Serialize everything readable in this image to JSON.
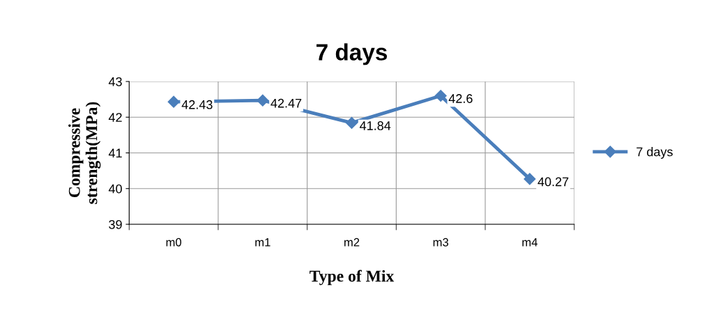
{
  "chart_data": {
    "type": "line",
    "title": "7 days",
    "xlabel": "Type of Mix",
    "ylabel": "Compressive\nstrength(MPa)",
    "categories": [
      "m0",
      "m1",
      "m2",
      "m3",
      "m4"
    ],
    "series": [
      {
        "name": "7 days",
        "color": "#4a7ebb",
        "values": [
          42.43,
          42.47,
          41.84,
          42.6,
          40.27
        ]
      }
    ],
    "ylim": [
      39,
      43
    ],
    "yticks": [
      39,
      40,
      41,
      42,
      43
    ],
    "grid": true,
    "legend": "right",
    "marker": "diamond",
    "line_style": "solid",
    "data_labels": true
  }
}
